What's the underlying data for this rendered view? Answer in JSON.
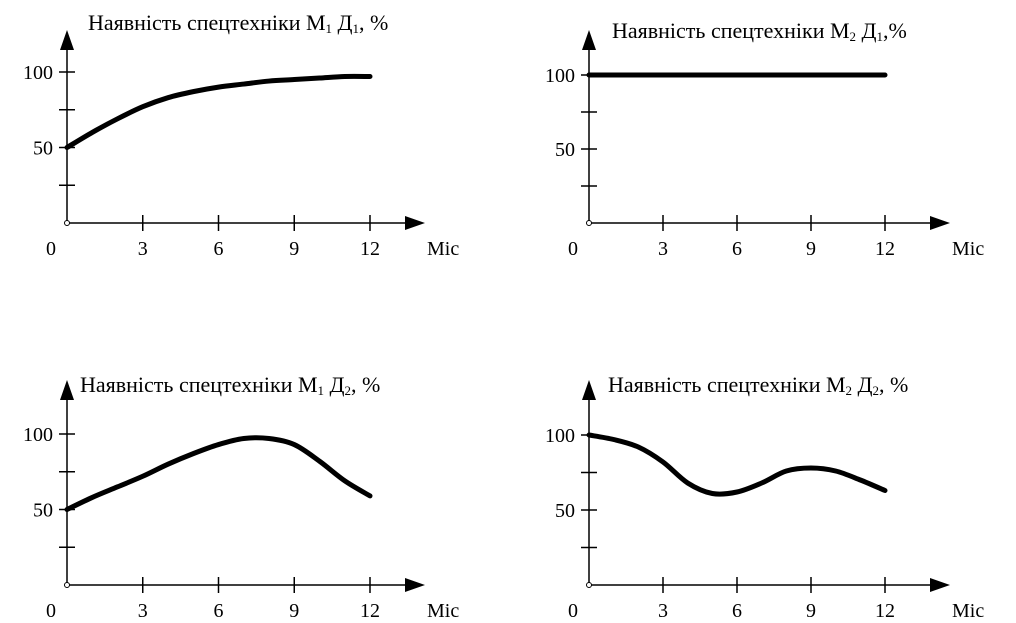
{
  "chart_data": [
    {
      "type": "line",
      "title_prefix": "Наявність спецтехніки М",
      "title_mid": "Д",
      "title_suffix": ", %",
      "sub1": "1",
      "sub2": "1",
      "xlabel": "Міс",
      "x_ticks": [
        "0",
        "3",
        "6",
        "9",
        "12"
      ],
      "y_ticks": [
        "50",
        "100"
      ],
      "xlim": [
        0,
        12
      ],
      "ylim": [
        0,
        100
      ],
      "series": [
        {
          "x": [
            0,
            1,
            2,
            3,
            4,
            5,
            6,
            7,
            8,
            9,
            10,
            11,
            12
          ],
          "values": [
            50,
            60,
            69,
            77,
            83,
            87,
            90,
            92,
            94,
            95,
            96,
            97,
            97
          ]
        }
      ]
    },
    {
      "type": "line",
      "title_prefix": "Наявність спецтехніки М",
      "title_mid": "Д",
      "title_suffix": ",%",
      "sub1": "2",
      "sub2": "1",
      "xlabel": "Міс",
      "x_ticks": [
        "0",
        "3",
        "6",
        "9",
        "12"
      ],
      "y_ticks": [
        "50",
        "100"
      ],
      "xlim": [
        0,
        12
      ],
      "ylim": [
        0,
        100
      ],
      "series": [
        {
          "x": [
            0,
            3,
            6,
            9,
            12
          ],
          "values": [
            100,
            100,
            100,
            100,
            100
          ]
        }
      ]
    },
    {
      "type": "line",
      "title_prefix": "Наявність спецтехніки М",
      "title_mid": "Д",
      "title_suffix": ", %",
      "sub1": "1",
      "sub2": "2",
      "xlabel": "Міс",
      "x_ticks": [
        "0",
        "3",
        "6",
        "9",
        "12"
      ],
      "y_ticks": [
        "50",
        "100"
      ],
      "xlim": [
        0,
        12
      ],
      "ylim": [
        0,
        100
      ],
      "series": [
        {
          "x": [
            0,
            1,
            2,
            3,
            4,
            5,
            6,
            7,
            8,
            9,
            10,
            11,
            12
          ],
          "values": [
            50,
            58,
            65,
            72,
            80,
            87,
            93,
            97,
            97,
            93,
            82,
            69,
            59
          ]
        }
      ]
    },
    {
      "type": "line",
      "title_prefix": "Наявність спецтехніки М",
      "title_mid": "Д",
      "title_suffix": ", %",
      "sub1": "2",
      "sub2": "2",
      "xlabel": "Міс",
      "x_ticks": [
        "0",
        "3",
        "6",
        "9",
        "12"
      ],
      "y_ticks": [
        "50",
        "100"
      ],
      "xlim": [
        0,
        12
      ],
      "ylim": [
        0,
        100
      ],
      "series": [
        {
          "x": [
            0,
            1,
            2,
            3,
            4,
            5,
            6,
            7,
            8,
            9,
            10,
            11,
            12
          ],
          "values": [
            100,
            97,
            92,
            82,
            68,
            61,
            62,
            68,
            76,
            78,
            76,
            70,
            63
          ]
        }
      ]
    }
  ]
}
